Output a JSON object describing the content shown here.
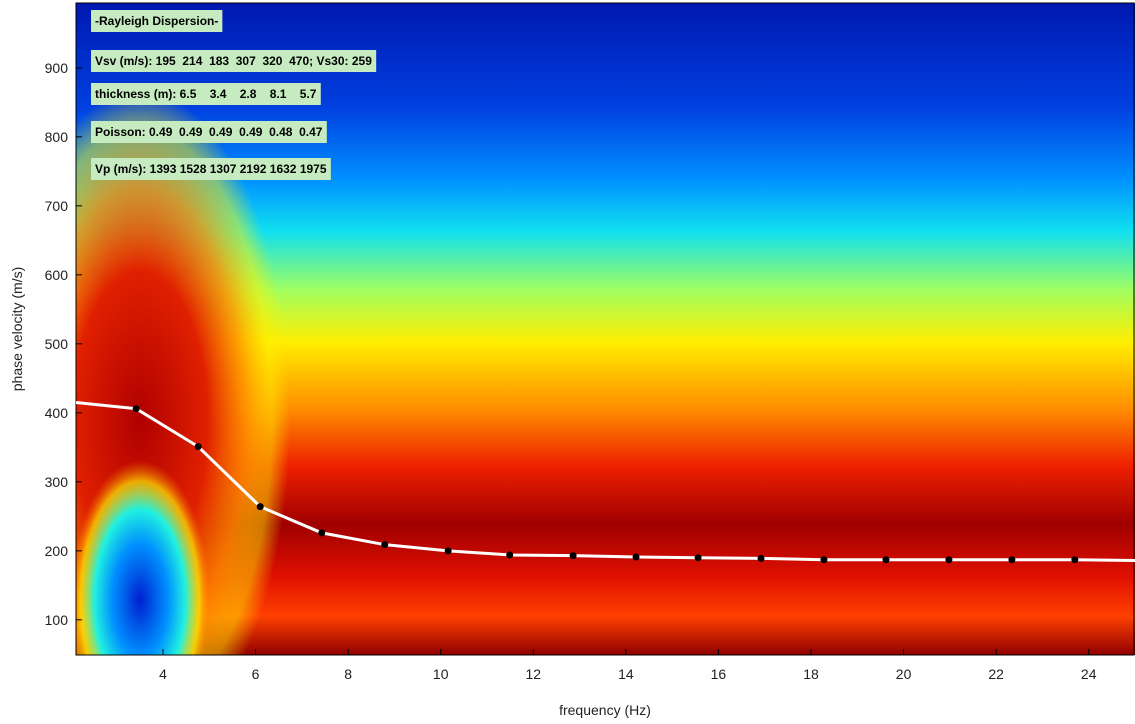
{
  "chart_data": {
    "type": "line",
    "xlabel": "frequency (Hz)",
    "ylabel": "phase velocity (m/s)",
    "xlim": [
      2.12,
      25
    ],
    "ylim": [
      49,
      994
    ],
    "xticks": [
      4,
      6,
      8,
      10,
      12,
      14,
      16,
      18,
      20,
      22,
      24
    ],
    "yticks": [
      100,
      200,
      300,
      400,
      500,
      600,
      700,
      800,
      900
    ],
    "annotations": [
      "-Rayleigh Dispersion-",
      "Vsv (m/s): 195  214  183  307  320  470; Vs30: 259",
      "thickness (m): 6.5    3.4    2.8    8.1    5.7",
      "Poisson: 0.49  0.49  0.49  0.49  0.48  0.47",
      "Vp (m/s): 1393 1528 1307 2192 1632 1975"
    ],
    "series": [
      {
        "style": "line",
        "color": "#ffffff",
        "x": [
          2.12,
          3.42,
          4.76,
          6.1,
          7.43,
          8.79,
          10.16,
          11.49,
          12.86,
          14.22,
          15.56,
          16.92,
          18.28,
          19.62,
          20.98,
          22.34,
          23.7,
          25
        ],
        "values": [
          415,
          406,
          351,
          264,
          226,
          209,
          200,
          194,
          193,
          191,
          190,
          189,
          187,
          187,
          187,
          187,
          187,
          186
        ]
      },
      {
        "style": "points",
        "color": "#000000",
        "x": [
          3.42,
          4.76,
          6.1,
          7.43,
          8.79,
          10.16,
          11.49,
          12.86,
          14.22,
          15.56,
          16.92,
          18.28,
          19.62,
          20.98,
          22.34,
          23.7
        ],
        "values": [
          406,
          351,
          264,
          226,
          209,
          200,
          194,
          193,
          191,
          190,
          189,
          187,
          187,
          187,
          187,
          187
        ]
      }
    ]
  }
}
